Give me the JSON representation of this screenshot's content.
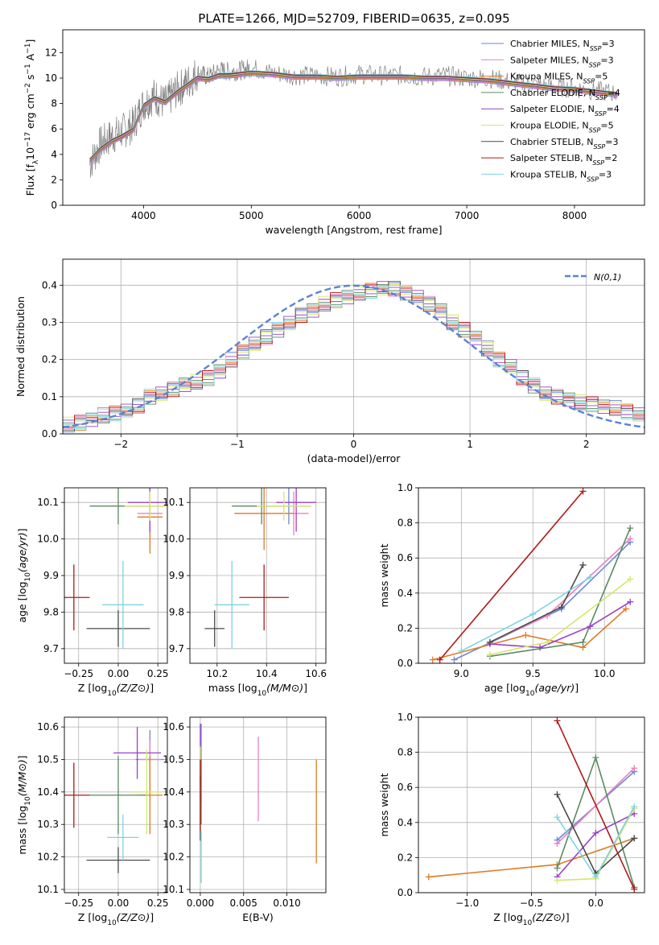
{
  "figure": {
    "title": "PLATE=1266, MJD=52709, FIBERID=0635, z=0.095"
  },
  "series": [
    {
      "name": "Chabrier MILES, N",
      "sub": "SSP",
      "suffix": "=3",
      "color": "#6f86d6"
    },
    {
      "name": "Salpeter MILES, N",
      "sub": "SSP",
      "suffix": "=3",
      "color": "#e882c0"
    },
    {
      "name": "Kroupa MILES, N",
      "sub": "SSP",
      "suffix": "=5",
      "color": "#e07a24"
    },
    {
      "name": "Chabrier ELODIE, N",
      "sub": "SSP",
      "suffix": "=4",
      "color": "#5a8a62"
    },
    {
      "name": "Salpeter ELODIE, N",
      "sub": "SSP",
      "suffix": "=4",
      "color": "#9a40c8"
    },
    {
      "name": "Kroupa ELODIE, N",
      "sub": "SSP",
      "suffix": "=5",
      "color": "#d6e66a"
    },
    {
      "name": "Chabrier STELIB, N",
      "sub": "SSP",
      "suffix": "=3",
      "color": "#4a4a4a"
    },
    {
      "name": "Salpeter STELIB, N",
      "sub": "SSP",
      "suffix": "=2",
      "color": "#b01818"
    },
    {
      "name": "Kroupa STELIB, N",
      "sub": "SSP",
      "suffix": "=3",
      "color": "#7dd3e0"
    }
  ],
  "chart_data": [
    {
      "id": "spectrum",
      "type": "line",
      "xlabel": "wavelength [Angstrom, rest frame]",
      "ylabel": "Flux [f",
      "xlim": [
        3250,
        8650
      ],
      "ylim": [
        0,
        13.8
      ],
      "xticks": [
        4000,
        5000,
        6000,
        7000,
        8000
      ],
      "yticks": [
        0,
        2,
        4,
        6,
        8,
        10,
        12
      ],
      "data_color": "#808080",
      "data_x": [
        3500,
        3600,
        3700,
        3800,
        3900,
        4000,
        4100,
        4200,
        4300,
        4400,
        4500,
        4600,
        4700,
        4800,
        4900,
        5000,
        5200,
        5400,
        5600,
        5800,
        6000,
        6200,
        6400,
        6600,
        6800,
        7000,
        7200,
        7400,
        7600,
        7800,
        8000,
        8200,
        8400
      ],
      "data_y": [
        3.2,
        4.8,
        5.4,
        5.8,
        6.3,
        8.0,
        8.6,
        8.0,
        9.0,
        9.6,
        10.4,
        10.1,
        10.6,
        10.5,
        10.6,
        10.8,
        10.4,
        10.2,
        10.2,
        10.1,
        10.3,
        10.2,
        10.2,
        10.1,
        10.2,
        10.0,
        10.0,
        9.7,
        9.5,
        9.3,
        9.2,
        9.0,
        8.8
      ],
      "model_x": [
        3500,
        3600,
        3700,
        3800,
        3900,
        4000,
        4100,
        4200,
        4300,
        4400,
        4500,
        4600,
        4700,
        4800,
        4900,
        5000,
        5200,
        5400,
        5600,
        5800,
        6000,
        6200,
        6400,
        6600,
        6800,
        7000,
        7200,
        7400,
        7600,
        7800,
        8000,
        8200,
        8400
      ],
      "model_y": [
        3.5,
        4.4,
        5.0,
        5.4,
        5.9,
        7.8,
        8.4,
        8.1,
        8.8,
        9.4,
        10.0,
        9.9,
        10.2,
        10.2,
        10.3,
        10.4,
        10.3,
        10.1,
        10.1,
        10.0,
        10.1,
        10.1,
        10.1,
        10.0,
        10.0,
        9.9,
        9.8,
        9.6,
        9.4,
        9.2,
        9.1,
        8.9,
        8.7
      ]
    },
    {
      "id": "residuals",
      "type": "bar",
      "xlabel": "(data-model)/error",
      "ylabel": "Normed distribution",
      "xlim": [
        -2.5,
        2.5
      ],
      "ylim": [
        0,
        0.47
      ],
      "xticks": [
        -2,
        -1,
        0,
        1,
        2
      ],
      "yticks": [
        0.0,
        0.1,
        0.2,
        0.3,
        0.4
      ],
      "legend": "N(0,1)",
      "bin_width": 0.1,
      "bins_x": [
        -2.5,
        -2.4,
        -2.3,
        -2.2,
        -2.1,
        -2.0,
        -1.9,
        -1.8,
        -1.7,
        -1.6,
        -1.5,
        -1.4,
        -1.3,
        -1.2,
        -1.1,
        -1.0,
        -0.9,
        -0.8,
        -0.7,
        -0.6,
        -0.5,
        -0.4,
        -0.3,
        -0.2,
        -0.1,
        0.0,
        0.1,
        0.2,
        0.3,
        0.4,
        0.5,
        0.6,
        0.7,
        0.8,
        0.9,
        1.0,
        1.1,
        1.2,
        1.3,
        1.4,
        1.5,
        1.6,
        1.7,
        1.8,
        1.9,
        2.0,
        2.1,
        2.2,
        2.3,
        2.4
      ],
      "hist": [
        0.025,
        0.03,
        0.04,
        0.05,
        0.055,
        0.06,
        0.075,
        0.1,
        0.11,
        0.12,
        0.13,
        0.14,
        0.15,
        0.17,
        0.2,
        0.22,
        0.24,
        0.26,
        0.28,
        0.3,
        0.32,
        0.33,
        0.35,
        0.36,
        0.37,
        0.38,
        0.385,
        0.39,
        0.39,
        0.38,
        0.37,
        0.35,
        0.33,
        0.3,
        0.28,
        0.26,
        0.23,
        0.2,
        0.18,
        0.15,
        0.13,
        0.11,
        0.1,
        0.09,
        0.085,
        0.08,
        0.075,
        0.07,
        0.06,
        0.05
      ]
    },
    {
      "id": "age-vs-Z",
      "type": "scatter",
      "xlabel": "Z [log10(Z/Z⊙)]",
      "ylabel": "age [log10(age/yr)]",
      "xlim": [
        -0.34,
        0.31
      ],
      "ylim": [
        9.66,
        10.14
      ],
      "xticks": [
        -0.25,
        0.0,
        0.25
      ],
      "yticks": [
        9.7,
        9.8,
        9.9,
        10.0,
        10.1
      ],
      "points": [
        {
          "x": 0.2,
          "y": 10.09,
          "xerr": 0.12,
          "yerr": 0.05
        },
        {
          "x": 0.2,
          "y": 10.07,
          "xerr": 0.08,
          "yerr": 0.06
        },
        {
          "x": 0.2,
          "y": 10.06,
          "xerr": 0.08,
          "yerr": 0.1
        },
        {
          "x": 0.0,
          "y": 10.09,
          "xerr": 0.18,
          "yerr": 0.05
        },
        {
          "x": 0.2,
          "y": 10.1,
          "xerr": 0.14,
          "yerr": 0.08
        },
        {
          "x": 0.2,
          "y": 10.09,
          "xerr": 0.16,
          "yerr": 0.04
        },
        {
          "x": 0.0,
          "y": 9.755,
          "xerr": 0.2,
          "yerr": 0.05
        },
        {
          "x": -0.28,
          "y": 9.84,
          "xerr": 0.1,
          "yerr": 0.09
        },
        {
          "x": 0.03,
          "y": 9.82,
          "xerr": 0.13,
          "yerr": 0.12
        }
      ]
    },
    {
      "id": "age-vs-mass",
      "type": "scatter",
      "xlabel": "mass [log10(M/M⊙)]",
      "ylabel": "",
      "xlim": [
        10.09,
        10.64
      ],
      "ylim": [
        9.66,
        10.14
      ],
      "xticks": [
        10.2,
        10.4,
        10.6
      ],
      "yticks": [
        9.7,
        9.8,
        9.9,
        10.0,
        10.1
      ],
      "points": [
        {
          "x": 10.49,
          "y": 10.09,
          "xerr": 0.09,
          "yerr": 0.05
        },
        {
          "x": 10.51,
          "y": 10.07,
          "xerr": 0.06,
          "yerr": 0.06
        },
        {
          "x": 10.39,
          "y": 10.07,
          "xerr": 0.12,
          "yerr": 0.1
        },
        {
          "x": 10.38,
          "y": 10.09,
          "xerr": 0.12,
          "yerr": 0.05
        },
        {
          "x": 10.52,
          "y": 10.1,
          "xerr": 0.08,
          "yerr": 0.08
        },
        {
          "x": 10.47,
          "y": 10.09,
          "xerr": 0.11,
          "yerr": 0.04
        },
        {
          "x": 10.19,
          "y": 9.755,
          "xerr": 0.04,
          "yerr": 0.05
        },
        {
          "x": 10.39,
          "y": 9.84,
          "xerr": 0.1,
          "yerr": 0.09
        },
        {
          "x": 10.26,
          "y": 9.82,
          "xerr": 0.07,
          "yerr": 0.12
        }
      ]
    },
    {
      "id": "weight-vs-age",
      "type": "line",
      "xlabel": "age [log10(age/yr)]",
      "ylabel": "mass weight",
      "xlim": [
        8.7,
        10.28
      ],
      "ylim": [
        0.0,
        1.0
      ],
      "xticks": [
        9.0,
        9.5,
        10.0
      ],
      "yticks": [
        0.0,
        0.2,
        0.4,
        0.6,
        0.8,
        1.0
      ],
      "lines": [
        {
          "x": [
            8.95,
            9.7,
            10.18
          ],
          "y": [
            0.02,
            0.31,
            0.69
          ]
        },
        {
          "x": [
            9.2,
            9.6,
            10.18
          ],
          "y": [
            0.12,
            0.27,
            0.71
          ]
        },
        {
          "x": [
            8.8,
            9.45,
            9.85,
            10.15
          ],
          "y": [
            0.02,
            0.16,
            0.09,
            0.31
          ]
        },
        {
          "x": [
            9.2,
            9.85,
            10.18
          ],
          "y": [
            0.04,
            0.12,
            0.77
          ]
        },
        {
          "x": [
            9.2,
            9.55,
            9.9,
            10.18
          ],
          "y": [
            0.11,
            0.09,
            0.21,
            0.35
          ]
        },
        {
          "x": [
            9.2,
            9.6,
            10.18
          ],
          "y": [
            0.05,
            0.12,
            0.48
          ]
        },
        {
          "x": [
            9.2,
            9.7,
            9.85
          ],
          "y": [
            0.12,
            0.32,
            0.56
          ]
        },
        {
          "x": [
            8.85,
            9.85
          ],
          "y": [
            0.02,
            0.98
          ]
        },
        {
          "x": [
            9.0,
            9.5,
            9.9
          ],
          "y": [
            0.07,
            0.28,
            0.49
          ]
        }
      ]
    },
    {
      "id": "mass-vs-Z",
      "type": "scatter",
      "xlabel": "Z [log10(Z/Z⊙)]",
      "ylabel": "mass [log10(M/M⊙)]",
      "xlim": [
        -0.34,
        0.31
      ],
      "ylim": [
        10.09,
        10.63
      ],
      "xticks": [
        -0.25,
        0.0,
        0.25
      ],
      "yticks": [
        10.1,
        10.2,
        10.3,
        10.4,
        10.5,
        10.6
      ],
      "points": [
        {
          "x": 0.2,
          "y": 10.5,
          "xerr": 0.09,
          "yerr": 0.09
        },
        {
          "x": 0.2,
          "y": 10.5,
          "xerr": 0.07,
          "yerr": 0.06
        },
        {
          "x": 0.2,
          "y": 10.39,
          "xerr": 0.08,
          "yerr": 0.12
        },
        {
          "x": 0.0,
          "y": 10.39,
          "xerr": 0.18,
          "yerr": 0.12
        },
        {
          "x": 0.12,
          "y": 10.52,
          "xerr": 0.15,
          "yerr": 0.08
        },
        {
          "x": 0.18,
          "y": 10.4,
          "xerr": 0.1,
          "yerr": 0.13
        },
        {
          "x": 0.0,
          "y": 10.19,
          "xerr": 0.2,
          "yerr": 0.04
        },
        {
          "x": -0.28,
          "y": 10.39,
          "xerr": 0.1,
          "yerr": 0.1
        },
        {
          "x": 0.03,
          "y": 10.26,
          "xerr": 0.1,
          "yerr": 0.07
        }
      ]
    },
    {
      "id": "mass-vs-EBV",
      "type": "scatter",
      "xlabel": "E(B-V)",
      "ylabel": "",
      "xlim": [
        -0.0012,
        0.0145
      ],
      "ylim": [
        10.09,
        10.63
      ],
      "xticks": [
        0.0,
        0.005,
        0.01
      ],
      "yticks": [
        10.1,
        10.2,
        10.3,
        10.4,
        10.5,
        10.6
      ],
      "points": [
        {
          "x": 0.0001,
          "y": 10.49,
          "xerr": 0,
          "yerr": 0.12
        },
        {
          "x": 0.0067,
          "y": 10.44,
          "xerr": 0,
          "yerr": 0.13
        },
        {
          "x": 0.0134,
          "y": 10.34,
          "xerr": 0,
          "yerr": 0.16
        },
        {
          "x": 0.0001,
          "y": 10.4,
          "xerr": 0,
          "yerr": 0.1
        },
        {
          "x": 0.0,
          "y": 10.52,
          "xerr": 0,
          "yerr": 0.09
        },
        {
          "x": 0.0,
          "y": 10.42,
          "xerr": 0,
          "yerr": 0.12
        },
        {
          "x": 0.0,
          "y": 10.35,
          "xerr": 0,
          "yerr": 0.1
        },
        {
          "x": 0.0,
          "y": 10.39,
          "xerr": 0,
          "yerr": 0.11
        },
        {
          "x": 0.0001,
          "y": 10.2,
          "xerr": 0,
          "yerr": 0.08
        }
      ]
    },
    {
      "id": "weight-vs-Z",
      "type": "line",
      "xlabel": "Z [log10(Z/Z⊙)]",
      "ylabel": "mass weight",
      "xlim": [
        -1.38,
        0.38
      ],
      "ylim": [
        0.0,
        1.0
      ],
      "xticks": [
        -1.0,
        -0.5,
        0.0
      ],
      "yticks": [
        0.0,
        0.2,
        0.4,
        0.6,
        0.8,
        1.0
      ],
      "lines": [
        {
          "x": [
            -0.3,
            0.3
          ],
          "y": [
            0.3,
            0.69
          ]
        },
        {
          "x": [
            -0.3,
            0.3
          ],
          "y": [
            0.28,
            0.71
          ]
        },
        {
          "x": [
            -1.3,
            -0.3,
            0.3
          ],
          "y": [
            0.09,
            0.16,
            0.31
          ]
        },
        {
          "x": [
            -0.3,
            0.0,
            0.3
          ],
          "y": [
            0.14,
            0.77,
            0.03
          ]
        },
        {
          "x": [
            -0.3,
            0.0,
            0.3
          ],
          "y": [
            0.09,
            0.34,
            0.45
          ]
        },
        {
          "x": [
            -0.3,
            0.0,
            0.3
          ],
          "y": [
            0.07,
            0.08,
            0.48
          ]
        },
        {
          "x": [
            -0.3,
            0.0,
            0.3
          ],
          "y": [
            0.56,
            0.11,
            0.31
          ]
        },
        {
          "x": [
            -0.3,
            0.3
          ],
          "y": [
            0.98,
            0.02
          ]
        },
        {
          "x": [
            -0.3,
            0.0,
            0.3
          ],
          "y": [
            0.43,
            0.09,
            0.49
          ]
        }
      ]
    }
  ]
}
